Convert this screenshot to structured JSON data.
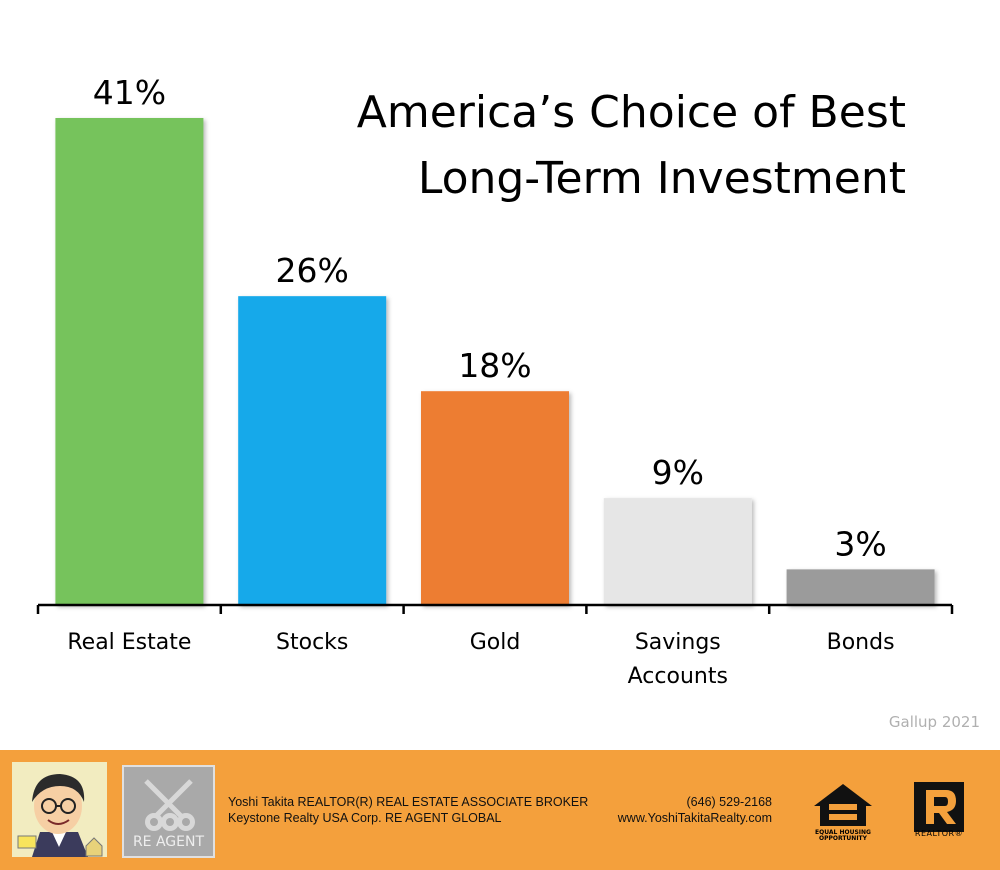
{
  "chart_data": {
    "type": "bar",
    "title_lines": [
      "America’s Choice of Best",
      "Long-Term Investment"
    ],
    "categories": [
      [
        "Real Estate"
      ],
      [
        "Stocks"
      ],
      [
        "Gold"
      ],
      [
        "Savings",
        "Accounts"
      ],
      [
        "Bonds"
      ]
    ],
    "values": [
      41,
      26,
      18,
      9,
      3
    ],
    "value_labels": [
      "41%",
      "26%",
      "18%",
      "9%",
      "3%"
    ],
    "colors": [
      "#76c35b",
      "#12a9ea",
      "#ed7d31",
      "#e6e6e6",
      "#9b9b9b"
    ],
    "ylim": [
      0,
      41
    ],
    "y_axis_visible": false,
    "grid": false,
    "legend": "none"
  },
  "source_label": "Gallup 2021",
  "footer": {
    "agent_line1": "Yoshi Takita REALTOR(R) REAL ESTATE ASSOCIATE BROKER",
    "agent_line2": "Keystone Realty USA Corp.  RE AGENT GLOBAL",
    "phone": "(646) 529-2168",
    "website": "www.YoshiTakitaRealty.com",
    "re_logo_text": "RE AGENT",
    "eho_text_line1": "EQUAL HOUSING",
    "eho_text_line2": "OPPORTUNITY",
    "realtor_text": "REALTOR®",
    "icons": [
      "agent-caricature",
      "re-agent-keys-logo",
      "equal-housing-icon",
      "realtor-r-icon"
    ],
    "background": "#f4a03c"
  }
}
